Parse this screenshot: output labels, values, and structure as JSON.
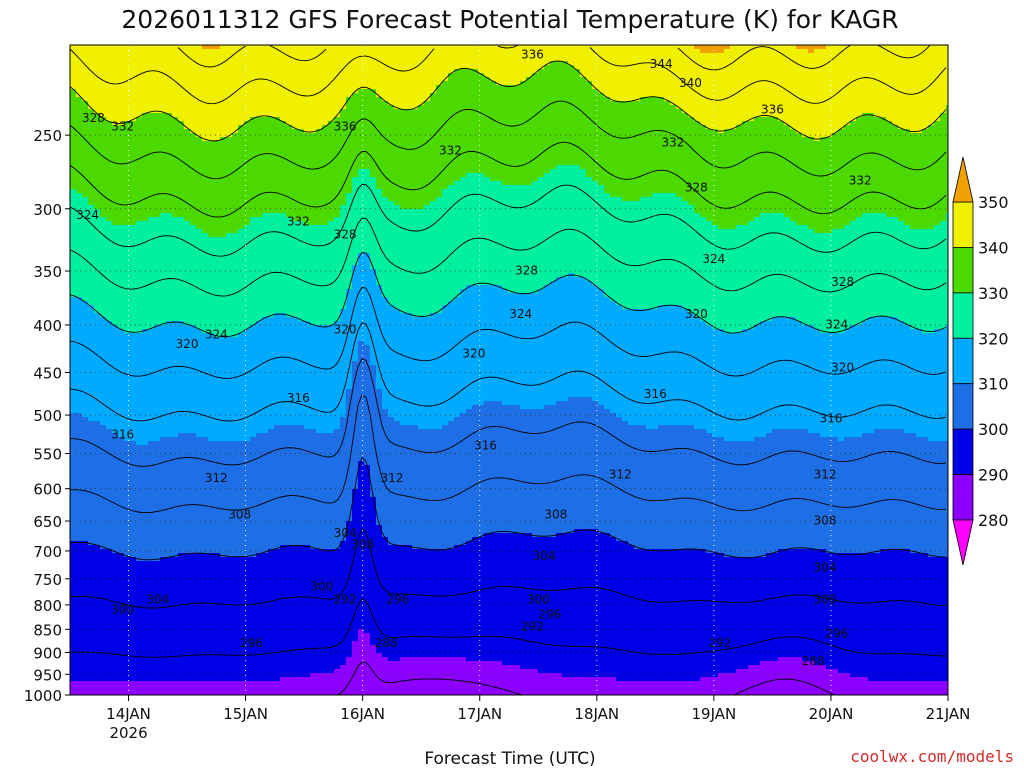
{
  "chart_data": {
    "type": "contour",
    "title": "2026011312 GFS Forecast Potential Temperature (K) for KAGR",
    "xlabel": "Forecast Time (UTC)",
    "ylabel": "",
    "x_ticks": [
      "14JAN",
      "15JAN",
      "16JAN",
      "17JAN",
      "18JAN",
      "19JAN",
      "20JAN",
      "21JAN"
    ],
    "x_year_label": "2026",
    "x_range_days": [
      -0.5,
      7.0
    ],
    "y_ticks": [
      "250",
      "300",
      "350",
      "400",
      "450",
      "500",
      "550",
      "600",
      "650",
      "700",
      "750",
      "800",
      "850",
      "900",
      "950",
      "1000"
    ],
    "y_range_hPa": [
      200,
      1000
    ],
    "y_scale": "log",
    "color_levels": [
      280,
      290,
      300,
      310,
      320,
      330,
      340,
      350
    ],
    "color_labels": [
      "280",
      "290",
      "300",
      "310",
      "320",
      "330",
      "340",
      "350"
    ],
    "color_bands": [
      {
        "range": [
          270,
          280
        ],
        "color": "#ff00ff"
      },
      {
        "range": [
          280,
          290
        ],
        "color": "#8b00ff"
      },
      {
        "range": [
          290,
          300
        ],
        "color": "#0000e6"
      },
      {
        "range": [
          300,
          310
        ],
        "color": "#1e6ee6"
      },
      {
        "range": [
          310,
          320
        ],
        "color": "#00aaff"
      },
      {
        "range": [
          320,
          330
        ],
        "color": "#00f0a0"
      },
      {
        "range": [
          330,
          340
        ],
        "color": "#4cd900"
      },
      {
        "range": [
          340,
          350
        ],
        "color": "#f0f000"
      },
      {
        "range": [
          350,
          360
        ],
        "color": "#f0a000"
      }
    ],
    "ground_color": "#a0522d",
    "contour_interval_K": 4,
    "surface_theta_K": 289,
    "upper_theta_K": 346,
    "contour_labels": [
      {
        "text": "328",
        "day": -0.3,
        "p": 240
      },
      {
        "text": "332",
        "day": -0.05,
        "p": 245
      },
      {
        "text": "324",
        "day": -0.35,
        "p": 305
      },
      {
        "text": "320",
        "day": 0.5,
        "p": 420
      },
      {
        "text": "324",
        "day": 0.75,
        "p": 410
      },
      {
        "text": "316",
        "day": -0.05,
        "p": 525
      },
      {
        "text": "312",
        "day": 0.75,
        "p": 585
      },
      {
        "text": "308",
        "day": 0.95,
        "p": 640
      },
      {
        "text": "300",
        "day": -0.05,
        "p": 810
      },
      {
        "text": "304",
        "day": 0.25,
        "p": 790
      },
      {
        "text": "296",
        "day": 1.05,
        "p": 880
      },
      {
        "text": "332",
        "day": 1.45,
        "p": 310
      },
      {
        "text": "316",
        "day": 1.45,
        "p": 480
      },
      {
        "text": "336",
        "day": 1.85,
        "p": 245
      },
      {
        "text": "328",
        "day": 1.85,
        "p": 320
      },
      {
        "text": "320",
        "day": 1.85,
        "p": 405
      },
      {
        "text": "304",
        "day": 1.85,
        "p": 670
      },
      {
        "text": "308",
        "day": 2.0,
        "p": 690
      },
      {
        "text": "300",
        "day": 1.65,
        "p": 765
      },
      {
        "text": "292",
        "day": 1.85,
        "p": 790
      },
      {
        "text": "312",
        "day": 2.25,
        "p": 585
      },
      {
        "text": "296",
        "day": 2.3,
        "p": 790
      },
      {
        "text": "288",
        "day": 2.2,
        "p": 880
      },
      {
        "text": "332",
        "day": 2.75,
        "p": 260
      },
      {
        "text": "320",
        "day": 2.95,
        "p": 430
      },
      {
        "text": "316",
        "day": 3.05,
        "p": 540
      },
      {
        "text": "336",
        "day": 3.45,
        "p": 205
      },
      {
        "text": "328",
        "day": 3.4,
        "p": 350
      },
      {
        "text": "324",
        "day": 3.35,
        "p": 390
      },
      {
        "text": "308",
        "day": 3.65,
        "p": 640
      },
      {
        "text": "304",
        "day": 3.55,
        "p": 710
      },
      {
        "text": "300",
        "day": 3.5,
        "p": 790
      },
      {
        "text": "292",
        "day": 3.45,
        "p": 845
      },
      {
        "text": "296",
        "day": 3.6,
        "p": 820
      },
      {
        "text": "312",
        "day": 4.2,
        "p": 580
      },
      {
        "text": "316",
        "day": 4.5,
        "p": 475
      },
      {
        "text": "332",
        "day": 4.65,
        "p": 255
      },
      {
        "text": "328",
        "day": 4.85,
        "p": 285
      },
      {
        "text": "344",
        "day": 4.55,
        "p": 210
      },
      {
        "text": "340",
        "day": 4.8,
        "p": 220
      },
      {
        "text": "324",
        "day": 5.0,
        "p": 340
      },
      {
        "text": "320",
        "day": 4.85,
        "p": 390
      },
      {
        "text": "292",
        "day": 5.05,
        "p": 880
      },
      {
        "text": "336",
        "day": 5.5,
        "p": 235
      },
      {
        "text": "312",
        "day": 5.95,
        "p": 580
      },
      {
        "text": "308",
        "day": 5.95,
        "p": 650
      },
      {
        "text": "304",
        "day": 5.95,
        "p": 730
      },
      {
        "text": "300",
        "day": 5.95,
        "p": 790
      },
      {
        "text": "296",
        "day": 6.05,
        "p": 860
      },
      {
        "text": "288",
        "day": 5.85,
        "p": 920
      },
      {
        "text": "332",
        "day": 6.25,
        "p": 280
      },
      {
        "text": "328",
        "day": 6.1,
        "p": 360
      },
      {
        "text": "324",
        "day": 6.05,
        "p": 400
      },
      {
        "text": "320",
        "day": 6.1,
        "p": 445
      },
      {
        "text": "316",
        "day": 6.0,
        "p": 505
      }
    ]
  },
  "credit_text": "coolwx.com/models"
}
